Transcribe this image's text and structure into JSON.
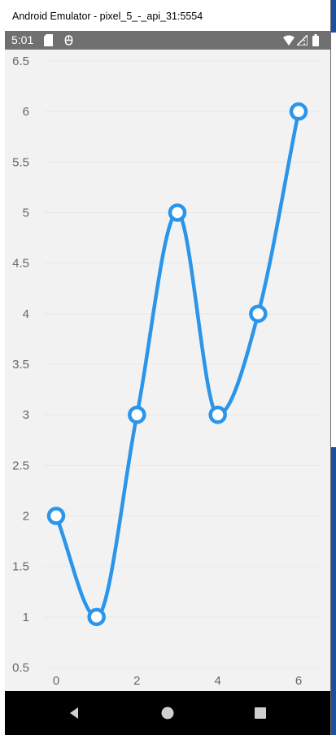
{
  "window": {
    "title": "Android Emulator - pixel_5_-_api_31:5554"
  },
  "status_bar": {
    "time": "5:01",
    "icons_left": [
      "sd-card-icon",
      "bug-icon"
    ],
    "icons_right": [
      "wifi-icon",
      "signal-icon",
      "battery-icon"
    ]
  },
  "nav_bar": {
    "icons": [
      "back-icon",
      "home-icon",
      "recents-icon"
    ]
  },
  "colors": {
    "series": "#2b95ea",
    "plot_bg": "#f2f2f2",
    "axis_text": "#666666",
    "status_bar": "#707070"
  },
  "chart_data": {
    "type": "line",
    "smooth": true,
    "markers": "hollow-circle",
    "x": [
      0,
      1,
      2,
      3,
      4,
      5,
      6
    ],
    "series": [
      {
        "values": [
          2,
          1,
          3,
          5,
          3,
          4,
          6
        ]
      }
    ],
    "x_ticks": [
      "0",
      "2",
      "4",
      "6"
    ],
    "y_ticks": [
      "0.5",
      "1",
      "1.5",
      "2",
      "2.5",
      "3",
      "3.5",
      "4",
      "4.5",
      "5",
      "5.5",
      "6",
      "6.5"
    ],
    "xlim": [
      -0.5,
      6.5
    ],
    "ylim": [
      0.5,
      6.5
    ],
    "grid": "horizontal-faint",
    "title": "",
    "xlabel": "",
    "ylabel": ""
  }
}
